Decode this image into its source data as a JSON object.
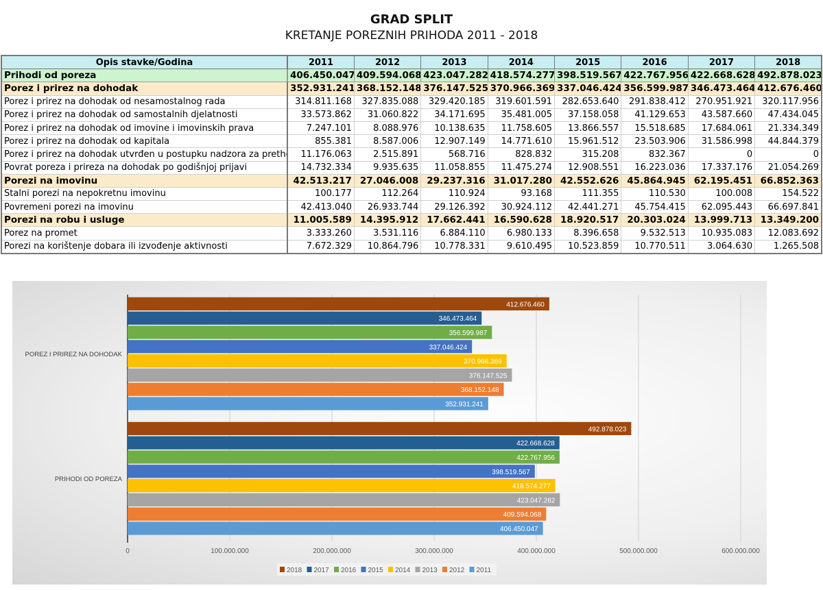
{
  "header": {
    "title": "GRAD SPLIT",
    "subtitle": "KRETANJE POREZNIH PRIHODA 2011 - 2018"
  },
  "table": {
    "columns": [
      "Opis stavke/Godina",
      "2011",
      "2012",
      "2013",
      "2014",
      "2015",
      "2016",
      "2017",
      "2018"
    ],
    "rows": [
      {
        "type": "total",
        "cells": [
          "Prihodi od poreza",
          "406.450.047",
          "409.594.068",
          "423.047.282",
          "418.574.277",
          "398.519.567",
          "422.767.956",
          "422.668.628",
          "492.878.023"
        ]
      },
      {
        "type": "sub",
        "cells": [
          "Porez i prirez na dohodak",
          "352.931.241",
          "368.152.148",
          "376.147.525",
          "370.966.369",
          "337.046.424",
          "356.599.987",
          "346.473.464",
          "412.676.460"
        ]
      },
      {
        "type": "row",
        "cells": [
          "Porez i prirez na dohodak od nesamostalnog rada",
          "314.811.168",
          "327.835.088",
          "329.420.185",
          "319.601.591",
          "282.653.640",
          "291.838.412",
          "270.951.921",
          "320.117.956"
        ]
      },
      {
        "type": "row",
        "cells": [
          "Porez i prirez na dohodak od samostalnih djelatnosti",
          "33.573.862",
          "31.060.822",
          "34.171.695",
          "35.481.005",
          "37.158.058",
          "41.129.653",
          "43.587.660",
          "47.434.045"
        ]
      },
      {
        "type": "row",
        "cells": [
          "Porez i prirez na dohodak od imovine i imovinskih prava",
          "7.247.101",
          "8.088.976",
          "10.138.635",
          "11.758.605",
          "13.866.557",
          "15.518.685",
          "17.684.061",
          "21.334.349"
        ]
      },
      {
        "type": "row",
        "cells": [
          "Porez i prirez na dohodak od kapitala",
          "855.381",
          "8.587.006",
          "12.907.149",
          "14.771.610",
          "15.961.512",
          "23.503.906",
          "31.586.998",
          "44.844.379"
        ]
      },
      {
        "type": "row",
        "cells": [
          "Porez i prirez na dohodak utvrđen u postupku nadzora za prethodne",
          "11.176.063",
          "2.515.891",
          "568.716",
          "828.832",
          "315.208",
          "832.367",
          "0",
          "0"
        ]
      },
      {
        "type": "row",
        "cells": [
          "Povrat poreza i prireza na dohodak po godišnjoj prijavi",
          "14.732.334",
          "9.935.635",
          "11.058.855",
          "11.475.274",
          "12.908.551",
          "16.223.036",
          "17.337.176",
          "21.054.269"
        ]
      },
      {
        "type": "sub",
        "cells": [
          "Porezi na imovinu",
          "42.513.217",
          "27.046.008",
          "29.237.316",
          "31.017.280",
          "42.552.626",
          "45.864.945",
          "62.195.451",
          "66.852.363"
        ]
      },
      {
        "type": "row",
        "cells": [
          "Stalni porezi na nepokretnu imovinu",
          "100.177",
          "112.264",
          "110.924",
          "93.168",
          "111.355",
          "110.530",
          "100.008",
          "154.522"
        ]
      },
      {
        "type": "row",
        "cells": [
          "Povremeni porezi na imovinu",
          "42.413.040",
          "26.933.744",
          "29.126.392",
          "30.924.112",
          "42.441.271",
          "45.754.415",
          "62.095.443",
          "66.697.841"
        ]
      },
      {
        "type": "sub",
        "cells": [
          "Porezi na robu i usluge",
          "11.005.589",
          "14.395.912",
          "17.662.441",
          "16.590.628",
          "18.920.517",
          "20.303.024",
          "13.999.713",
          "13.349.200"
        ]
      },
      {
        "type": "row",
        "cells": [
          "Porez na promet",
          "3.333.260",
          "3.531.116",
          "6.884.110",
          "6.980.133",
          "8.396.658",
          "9.532.513",
          "10.935.083",
          "12.083.692"
        ]
      },
      {
        "type": "row",
        "cells": [
          "Porezi na korištenje dobara ili izvođenje aktivnosti",
          "7.672.329",
          "10.864.796",
          "10.778.331",
          "9.610.495",
          "10.523.859",
          "10.770.511",
          "3.064.630",
          "1.265.508"
        ]
      }
    ]
  },
  "chart_data": {
    "type": "bar",
    "orientation": "horizontal",
    "categories": [
      "PRIHODI OD POREZA",
      "POREZ I PRIREZ NA DOHODAK"
    ],
    "series": [
      {
        "name": "2011",
        "color": "#5b9bd5",
        "values": [
          406450047,
          352931241
        ]
      },
      {
        "name": "2012",
        "color": "#ed7d31",
        "values": [
          409594068,
          368152148
        ]
      },
      {
        "name": "2013",
        "color": "#a5a5a5",
        "values": [
          423047282,
          376147525
        ]
      },
      {
        "name": "2014",
        "color": "#ffc000",
        "values": [
          418574277,
          370966369
        ]
      },
      {
        "name": "2015",
        "color": "#4472c4",
        "values": [
          398519567,
          337046424
        ]
      },
      {
        "name": "2016",
        "color": "#70ad47",
        "values": [
          422767956,
          356599987
        ]
      },
      {
        "name": "2017",
        "color": "#255e91",
        "values": [
          422668628,
          346473464
        ]
      },
      {
        "name": "2018",
        "color": "#9e480e",
        "values": [
          492878023,
          412676460
        ]
      }
    ],
    "data_labels": [
      [
        "406.450.047",
        "352.931.241"
      ],
      [
        "409.594.068",
        "368.152.148"
      ],
      [
        "423.047.282",
        "376.147.525"
      ],
      [
        "418.574.277",
        "370.966.369"
      ],
      [
        "398.519.567",
        "337.046.424"
      ],
      [
        "422.767.956",
        "356.599.987"
      ],
      [
        "422.668.628",
        "346.473.464"
      ],
      [
        "492.878.023",
        "412.676.460"
      ]
    ],
    "xlim": [
      0,
      600000000
    ],
    "x_ticks": [
      0,
      100000000,
      200000000,
      300000000,
      400000000,
      500000000,
      600000000
    ],
    "x_tick_labels": [
      "0",
      "100.000.000",
      "200.000.000",
      "300.000.000",
      "400.000.000",
      "500.000.000",
      "600.000.000"
    ],
    "legend": [
      "2018",
      "2017",
      "2016",
      "2015",
      "2014",
      "2013",
      "2012",
      "2011"
    ],
    "legend_position": "bottom",
    "grid": true
  }
}
